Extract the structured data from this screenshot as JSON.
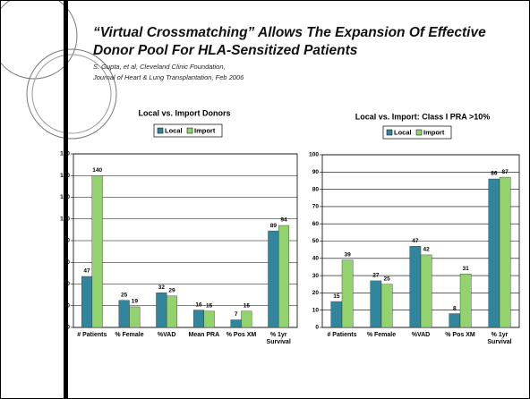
{
  "header": {
    "title": "“Virtual Crossmatching” Allows The Expansion Of Effective Donor Pool For HLA-Sensitized Patients",
    "subtitle": [
      "S. Gupta, et al,  Cleveland Clinic Foundation,",
      "Journal of Heart & Lung Transplantation, Feb 2006"
    ]
  },
  "chart_data": [
    {
      "type": "bar",
      "title": "Local vs. Import Donors",
      "categories": [
        "# Patients",
        "% Female",
        "%VAD",
        "Mean PRA",
        "% Pos XM",
        "% 1yr Survival"
      ],
      "series": [
        {
          "name": "Local",
          "color": "#31859c",
          "values": [
            47,
            25,
            32,
            16,
            7,
            89
          ]
        },
        {
          "name": "Import",
          "color": "#92d36e",
          "values": [
            140,
            19,
            29,
            15,
            15,
            94
          ]
        }
      ],
      "ylim": [
        0,
        160
      ],
      "yticks": [
        0,
        20,
        40,
        60,
        80,
        100,
        120,
        140,
        160
      ],
      "grid": true,
      "legend": "top"
    },
    {
      "type": "bar",
      "title": "Local vs. Import: Class I PRA >10%",
      "categories": [
        "# Patients",
        "% Female",
        "%VAD",
        "% Pos XM",
        "% 1yr Survival"
      ],
      "series": [
        {
          "name": "Local",
          "color": "#31859c",
          "values": [
            15,
            27,
            47,
            8,
            86
          ]
        },
        {
          "name": "Import",
          "color": "#92d36e",
          "values": [
            39,
            25,
            42,
            31,
            87
          ]
        }
      ],
      "ylim": [
        0,
        100
      ],
      "yticks": [
        0,
        10,
        20,
        30,
        40,
        50,
        60,
        70,
        80,
        90,
        100
      ],
      "grid": true,
      "legend": "top"
    }
  ]
}
